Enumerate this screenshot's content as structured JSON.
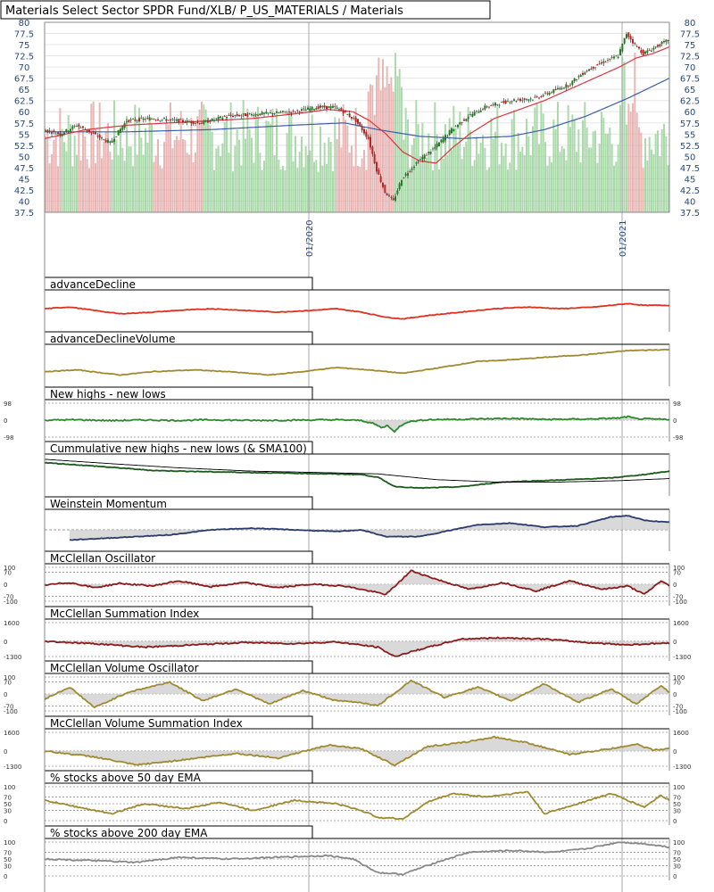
{
  "chart_title": "Materials Select Sector SPDR Fund/XLB/ P_US_MATERIALS / Materials",
  "colors": {
    "up_candle": "#1e7d1e",
    "down_candle": "#c0201f",
    "volume_up": "#9fd49f",
    "volume_down": "#e6aaaa",
    "sma50": "#d9363e",
    "sma200": "#3a5fa8",
    "grid": "#e5e5e5",
    "fill": "#cccccc"
  },
  "chart_data": [
    {
      "id": "price",
      "type": "candlestick",
      "ylim": [
        37.5,
        80
      ],
      "yticks": [
        "80",
        "77.5",
        "75",
        "72.5",
        "70",
        "67.5",
        "65",
        "62.5",
        "60",
        "57.5",
        "55",
        "52.5",
        "50",
        "47.5",
        "45",
        "42.5",
        "40",
        "37.5"
      ],
      "xticks": [
        "01/2020",
        "01/2021"
      ],
      "close_points": [
        [
          0,
          56
        ],
        [
          20,
          55
        ],
        [
          40,
          57
        ],
        [
          60,
          55
        ],
        [
          80,
          53
        ],
        [
          100,
          58
        ],
        [
          130,
          58.5
        ],
        [
          160,
          58
        ],
        [
          190,
          57.5
        ],
        [
          220,
          59
        ],
        [
          260,
          59.5
        ],
        [
          300,
          60
        ],
        [
          330,
          61
        ],
        [
          350,
          61
        ],
        [
          360,
          60
        ],
        [
          375,
          58
        ],
        [
          390,
          54
        ],
        [
          400,
          47
        ],
        [
          410,
          42
        ],
        [
          420,
          40
        ],
        [
          430,
          45
        ],
        [
          450,
          49
        ],
        [
          470,
          52
        ],
        [
          490,
          56
        ],
        [
          510,
          59
        ],
        [
          530,
          61
        ],
        [
          560,
          62.5
        ],
        [
          590,
          63
        ],
        [
          610,
          64.5
        ],
        [
          630,
          66
        ],
        [
          650,
          69
        ],
        [
          670,
          71
        ],
        [
          690,
          72.5
        ],
        [
          700,
          77.5
        ],
        [
          710,
          75
        ],
        [
          720,
          73
        ],
        [
          740,
          75
        ],
        [
          750,
          76
        ]
      ],
      "sma50_points": [
        [
          0,
          54
        ],
        [
          50,
          56
        ],
        [
          100,
          57
        ],
        [
          150,
          57.5
        ],
        [
          200,
          58
        ],
        [
          250,
          58.5
        ],
        [
          300,
          59.5
        ],
        [
          340,
          60.5
        ],
        [
          370,
          60
        ],
        [
          390,
          58
        ],
        [
          410,
          55
        ],
        [
          430,
          51
        ],
        [
          450,
          49
        ],
        [
          470,
          48.5
        ],
        [
          490,
          52
        ],
        [
          510,
          55
        ],
        [
          540,
          58.5
        ],
        [
          570,
          60.5
        ],
        [
          600,
          62.5
        ],
        [
          630,
          65
        ],
        [
          660,
          67.5
        ],
        [
          690,
          70
        ],
        [
          710,
          72
        ],
        [
          730,
          73
        ],
        [
          750,
          74.5
        ]
      ],
      "sma200_points": [
        [
          0,
          55.5
        ],
        [
          100,
          55.5
        ],
        [
          200,
          56
        ],
        [
          300,
          57
        ],
        [
          360,
          57.5
        ],
        [
          400,
          56
        ],
        [
          450,
          54.5
        ],
        [
          500,
          54
        ],
        [
          560,
          54.5
        ],
        [
          600,
          56
        ],
        [
          650,
          59
        ],
        [
          700,
          63
        ],
        [
          750,
          67.5
        ]
      ]
    },
    {
      "id": "advanceDecline",
      "type": "line",
      "title": "advanceDecline",
      "color": "#e03020",
      "points": [
        [
          0,
          0.55
        ],
        [
          30,
          0.6
        ],
        [
          60,
          0.5
        ],
        [
          90,
          0.4
        ],
        [
          130,
          0.45
        ],
        [
          160,
          0.5
        ],
        [
          200,
          0.55
        ],
        [
          240,
          0.5
        ],
        [
          280,
          0.45
        ],
        [
          320,
          0.5
        ],
        [
          350,
          0.55
        ],
        [
          380,
          0.45
        ],
        [
          410,
          0.3
        ],
        [
          430,
          0.25
        ],
        [
          460,
          0.35
        ],
        [
          500,
          0.45
        ],
        [
          540,
          0.55
        ],
        [
          580,
          0.6
        ],
        [
          620,
          0.55
        ],
        [
          660,
          0.6
        ],
        [
          700,
          0.7
        ],
        [
          720,
          0.65
        ],
        [
          750,
          0.65
        ]
      ]
    },
    {
      "id": "advanceDeclineVolume",
      "type": "line",
      "title": "advanceDeclineVolume",
      "color": "#a08a30",
      "points": [
        [
          0,
          0.3
        ],
        [
          40,
          0.35
        ],
        [
          90,
          0.2
        ],
        [
          130,
          0.3
        ],
        [
          180,
          0.35
        ],
        [
          220,
          0.3
        ],
        [
          270,
          0.2
        ],
        [
          310,
          0.3
        ],
        [
          350,
          0.42
        ],
        [
          390,
          0.35
        ],
        [
          430,
          0.25
        ],
        [
          470,
          0.4
        ],
        [
          520,
          0.6
        ],
        [
          560,
          0.65
        ],
        [
          600,
          0.72
        ],
        [
          650,
          0.8
        ],
        [
          700,
          0.92
        ],
        [
          750,
          0.95
        ]
      ]
    },
    {
      "id": "newHighsLows",
      "type": "line",
      "title": "New highs - new lows",
      "color": "#2a8a2a",
      "yticks": [
        "98",
        "0",
        "-98"
      ],
      "ylim": [
        -98,
        98
      ],
      "baseline": 0,
      "fill_negative": true,
      "points": [
        [
          0,
          0
        ],
        [
          40,
          2
        ],
        [
          80,
          -3
        ],
        [
          120,
          1
        ],
        [
          160,
          -2
        ],
        [
          200,
          2
        ],
        [
          250,
          -2
        ],
        [
          300,
          0
        ],
        [
          350,
          2
        ],
        [
          380,
          -2
        ],
        [
          395,
          -20
        ],
        [
          405,
          -45
        ],
        [
          412,
          -30
        ],
        [
          420,
          -70
        ],
        [
          425,
          -40
        ],
        [
          435,
          -10
        ],
        [
          460,
          3
        ],
        [
          500,
          5
        ],
        [
          560,
          10
        ],
        [
          600,
          4
        ],
        [
          650,
          6
        ],
        [
          690,
          12
        ],
        [
          700,
          20
        ],
        [
          710,
          8
        ],
        [
          740,
          5
        ],
        [
          750,
          4
        ]
      ]
    },
    {
      "id": "cumulativeHighsLows",
      "type": "line",
      "title": "Cummulative new highs - new lows (& SMA100)",
      "color": "#1a5a1a",
      "sma_color": "#000000",
      "points": [
        [
          0,
          0.85
        ],
        [
          60,
          0.75
        ],
        [
          130,
          0.62
        ],
        [
          200,
          0.58
        ],
        [
          270,
          0.55
        ],
        [
          340,
          0.52
        ],
        [
          380,
          0.5
        ],
        [
          400,
          0.42
        ],
        [
          420,
          0.15
        ],
        [
          450,
          0.1
        ],
        [
          500,
          0.14
        ],
        [
          550,
          0.28
        ],
        [
          620,
          0.34
        ],
        [
          680,
          0.4
        ],
        [
          720,
          0.5
        ],
        [
          750,
          0.6
        ]
      ],
      "sma_points": [
        [
          0,
          0.95
        ],
        [
          80,
          0.82
        ],
        [
          160,
          0.7
        ],
        [
          250,
          0.6
        ],
        [
          330,
          0.56
        ],
        [
          400,
          0.52
        ],
        [
          470,
          0.35
        ],
        [
          540,
          0.28
        ],
        [
          620,
          0.28
        ],
        [
          690,
          0.32
        ],
        [
          750,
          0.38
        ]
      ]
    },
    {
      "id": "weinsteinMomentum",
      "type": "line",
      "title": "Weinstein Momentum",
      "color": "#2a3a6a",
      "fill_above_baseline": true,
      "baseline_frac": 0.5,
      "points": [
        [
          30,
          0.2
        ],
        [
          70,
          0.25
        ],
        [
          110,
          0.3
        ],
        [
          150,
          0.35
        ],
        [
          200,
          0.5
        ],
        [
          250,
          0.55
        ],
        [
          300,
          0.5
        ],
        [
          350,
          0.45
        ],
        [
          380,
          0.5
        ],
        [
          410,
          0.3
        ],
        [
          450,
          0.3
        ],
        [
          490,
          0.5
        ],
        [
          520,
          0.65
        ],
        [
          560,
          0.7
        ],
        [
          600,
          0.58
        ],
        [
          640,
          0.62
        ],
        [
          680,
          0.88
        ],
        [
          700,
          0.92
        ],
        [
          720,
          0.78
        ],
        [
          750,
          0.72
        ]
      ]
    },
    {
      "id": "mcclellanOscillator",
      "type": "line",
      "title": "McClellan Oscillator",
      "color": "#8b1a1a",
      "yticks": [
        "100",
        "70",
        "0",
        "-70",
        "-100"
      ],
      "ylim": [
        -100,
        100
      ],
      "fill_baseline": true,
      "points": [
        [
          0,
          -5
        ],
        [
          30,
          10
        ],
        [
          60,
          -20
        ],
        [
          90,
          5
        ],
        [
          130,
          -10
        ],
        [
          160,
          20
        ],
        [
          200,
          -15
        ],
        [
          240,
          10
        ],
        [
          280,
          -20
        ],
        [
          320,
          0
        ],
        [
          360,
          -10
        ],
        [
          390,
          -40
        ],
        [
          410,
          -60
        ],
        [
          440,
          80
        ],
        [
          470,
          30
        ],
        [
          510,
          -30
        ],
        [
          550,
          10
        ],
        [
          590,
          -40
        ],
        [
          630,
          20
        ],
        [
          670,
          -30
        ],
        [
          700,
          -10
        ],
        [
          720,
          -60
        ],
        [
          740,
          20
        ],
        [
          750,
          -10
        ]
      ]
    },
    {
      "id": "mcclellanSummation",
      "type": "line",
      "title": "McClellan Summation Index",
      "color": "#8b1a1a",
      "yticks": [
        "1600",
        "0",
        "-1300"
      ],
      "ylim": [
        -1300,
        1600
      ],
      "fill_baseline": true,
      "points": [
        [
          0,
          0
        ],
        [
          60,
          -200
        ],
        [
          120,
          -500
        ],
        [
          180,
          -300
        ],
        [
          240,
          -100
        ],
        [
          300,
          -200
        ],
        [
          350,
          -50
        ],
        [
          400,
          -500
        ],
        [
          420,
          -1300
        ],
        [
          450,
          -700
        ],
        [
          500,
          200
        ],
        [
          550,
          300
        ],
        [
          600,
          200
        ],
        [
          650,
          -100
        ],
        [
          700,
          -300
        ],
        [
          730,
          -200
        ],
        [
          750,
          -150
        ]
      ]
    },
    {
      "id": "mcclellanVolumeOscillator",
      "type": "line",
      "title": "McClellan Volume Oscillator",
      "color": "#a08a30",
      "yticks": [
        "100",
        "70",
        "0",
        "-70",
        "-100"
      ],
      "ylim": [
        -100,
        100
      ],
      "fill_baseline": true,
      "points": [
        [
          0,
          -30
        ],
        [
          30,
          40
        ],
        [
          60,
          -80
        ],
        [
          100,
          10
        ],
        [
          150,
          70
        ],
        [
          190,
          -40
        ],
        [
          230,
          30
        ],
        [
          270,
          -60
        ],
        [
          310,
          20
        ],
        [
          350,
          -40
        ],
        [
          380,
          -50
        ],
        [
          400,
          -70
        ],
        [
          440,
          80
        ],
        [
          480,
          -20
        ],
        [
          520,
          40
        ],
        [
          560,
          -40
        ],
        [
          600,
          60
        ],
        [
          640,
          -50
        ],
        [
          680,
          30
        ],
        [
          710,
          -60
        ],
        [
          740,
          50
        ],
        [
          750,
          10
        ]
      ]
    },
    {
      "id": "mcclellanVolumeSummation",
      "type": "line",
      "title": "McClellan Volume Summation Index",
      "color": "#a08a30",
      "yticks": [
        "1600",
        "0",
        "-1300"
      ],
      "ylim": [
        -1300,
        1600
      ],
      "fill_baseline": true,
      "points": [
        [
          0,
          0
        ],
        [
          60,
          -500
        ],
        [
          110,
          -1200
        ],
        [
          160,
          -800
        ],
        [
          230,
          -200
        ],
        [
          280,
          -600
        ],
        [
          340,
          500
        ],
        [
          380,
          200
        ],
        [
          420,
          -1200
        ],
        [
          460,
          400
        ],
        [
          500,
          700
        ],
        [
          540,
          1200
        ],
        [
          580,
          700
        ],
        [
          630,
          -300
        ],
        [
          680,
          200
        ],
        [
          710,
          600
        ],
        [
          730,
          100
        ],
        [
          750,
          200
        ]
      ]
    },
    {
      "id": "pctAbove50",
      "type": "line",
      "title": "% stocks above 50 day EMA",
      "color": "#a08a30",
      "yticks": [
        "100",
        "70",
        "50",
        "30",
        "0"
      ],
      "ylim": [
        0,
        100
      ],
      "points": [
        [
          0,
          60
        ],
        [
          40,
          40
        ],
        [
          80,
          20
        ],
        [
          120,
          50
        ],
        [
          170,
          35
        ],
        [
          210,
          55
        ],
        [
          250,
          30
        ],
        [
          300,
          60
        ],
        [
          350,
          50
        ],
        [
          380,
          30
        ],
        [
          400,
          10
        ],
        [
          430,
          5
        ],
        [
          460,
          55
        ],
        [
          490,
          80
        ],
        [
          530,
          70
        ],
        [
          580,
          85
        ],
        [
          600,
          20
        ],
        [
          640,
          50
        ],
        [
          680,
          80
        ],
        [
          700,
          60
        ],
        [
          720,
          40
        ],
        [
          740,
          75
        ],
        [
          750,
          60
        ]
      ]
    },
    {
      "id": "pctAbove200",
      "type": "line",
      "title": "% stocks above 200 day EMA",
      "color": "#888888",
      "yticks": [
        "100",
        "70",
        "50",
        "30",
        "0"
      ],
      "ylim": [
        0,
        100
      ],
      "points": [
        [
          0,
          50
        ],
        [
          60,
          45
        ],
        [
          110,
          40
        ],
        [
          160,
          55
        ],
        [
          220,
          50
        ],
        [
          280,
          55
        ],
        [
          340,
          60
        ],
        [
          370,
          50
        ],
        [
          400,
          10
        ],
        [
          430,
          5
        ],
        [
          470,
          40
        ],
        [
          510,
          70
        ],
        [
          560,
          75
        ],
        [
          610,
          70
        ],
        [
          650,
          80
        ],
        [
          690,
          100
        ],
        [
          720,
          95
        ],
        [
          750,
          85
        ]
      ]
    }
  ]
}
